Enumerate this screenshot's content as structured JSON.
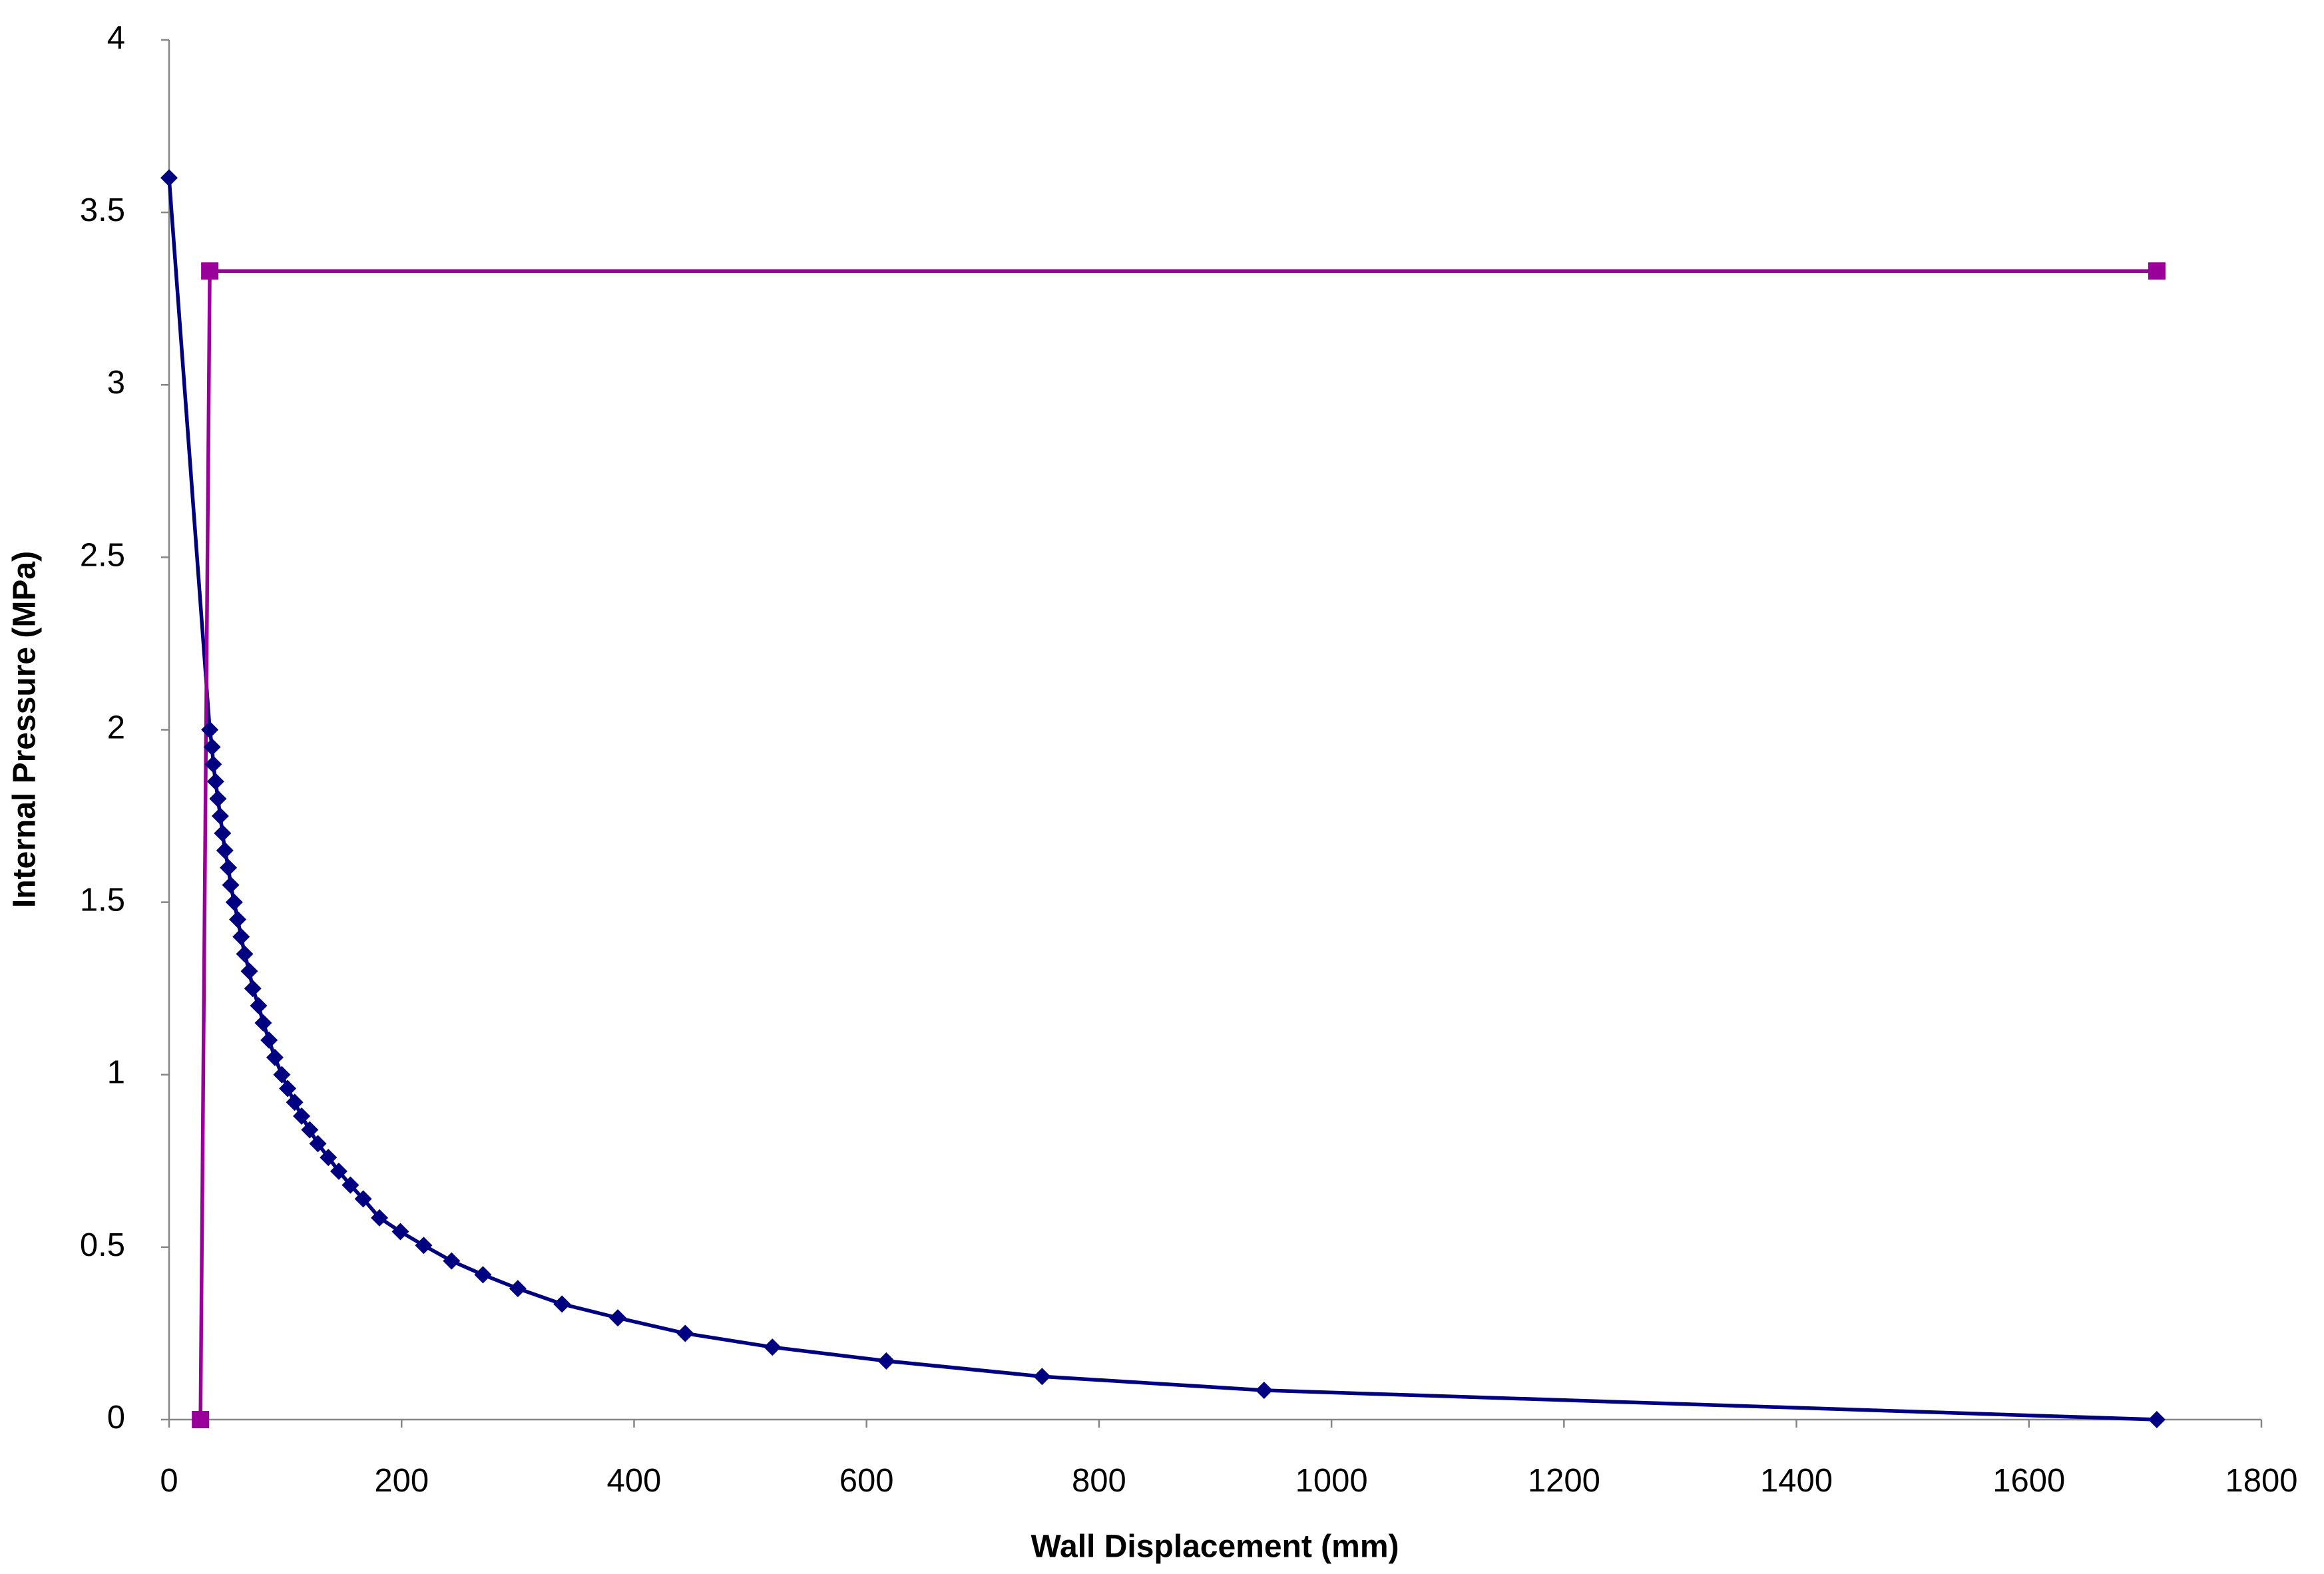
{
  "chart_data": {
    "type": "scatter",
    "x_label": "Wall Displacement (mm)",
    "y_label": "Internal Pressure (MPa)",
    "xlim": [
      0,
      1800
    ],
    "xticks": [
      0,
      200,
      400,
      600,
      800,
      1000,
      1200,
      1400,
      1600,
      1800
    ],
    "ylim": [
      0,
      4
    ],
    "yticks": [
      0,
      0.5,
      1,
      1.5,
      2,
      2.5,
      3,
      3.5,
      4
    ],
    "grid": false,
    "series": [
      {
        "color": "#000080",
        "marker": "diamond",
        "x": [
          0,
          35,
          37,
          38,
          40,
          42,
          44,
          46,
          48,
          51,
          53,
          56,
          59,
          62,
          65,
          69,
          72,
          77,
          81,
          86,
          91,
          97,
          102,
          108,
          114,
          121,
          128,
          137,
          146,
          156,
          167,
          181,
          199,
          219,
          243,
          270,
          300,
          338,
          386,
          444,
          519,
          617,
          751,
          942,
          1710
        ],
        "values": [
          3.6,
          2.0,
          1.95,
          1.9,
          1.85,
          1.8,
          1.75,
          1.7,
          1.65,
          1.6,
          1.55,
          1.5,
          1.45,
          1.4,
          1.35,
          1.3,
          1.25,
          1.2,
          1.15,
          1.1,
          1.05,
          1.0,
          0.96,
          0.92,
          0.88,
          0.84,
          0.8,
          0.76,
          0.72,
          0.68,
          0.64,
          0.585,
          0.545,
          0.505,
          0.46,
          0.42,
          0.38,
          0.335,
          0.295,
          0.25,
          0.21,
          0.17,
          0.125,
          0.085,
          0
        ]
      },
      {
        "color": "#990099",
        "marker": "square",
        "x": [
          27,
          35,
          1710
        ],
        "values": [
          0,
          3.33,
          3.33
        ]
      }
    ]
  }
}
